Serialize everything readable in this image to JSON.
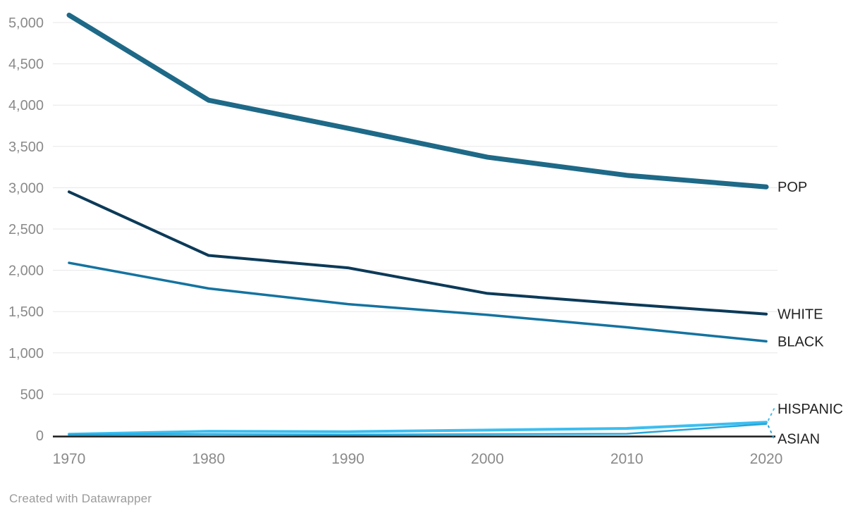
{
  "chart_data": {
    "type": "line",
    "title": "",
    "xlabel": "",
    "ylabel": "",
    "x": [
      1970,
      1980,
      1990,
      2000,
      2010,
      2020
    ],
    "x_tick_labels": [
      "1970",
      "1980",
      "1990",
      "2000",
      "2010",
      "2020"
    ],
    "y_ticks": [
      0,
      500,
      1000,
      1500,
      2000,
      2500,
      3000,
      3500,
      4000,
      4500,
      5000
    ],
    "y_tick_labels": [
      "0",
      "500",
      "1,000",
      "1,500",
      "2,000",
      "2,500",
      "3,000",
      "3,500",
      "4,000",
      "4,500",
      "5,000"
    ],
    "ylim": [
      0,
      5000
    ],
    "grid": true,
    "legend_position": "line-end-labels-right",
    "axis_label_color": "#8a8a8a",
    "series_label_color": "#222222",
    "gridline_color": "#e7e7e7",
    "baseline_color": "#1a1a1a",
    "series": [
      {
        "name": "POP",
        "color": "#1E6987",
        "stroke_width": 7,
        "label_dy": 0,
        "leader": false,
        "values": [
          5090,
          4060,
          3720,
          3370,
          3150,
          3010
        ]
      },
      {
        "name": "WHITE",
        "color": "#0C3A58",
        "stroke_width": 4,
        "label_dy": 0,
        "leader": false,
        "values": [
          2950,
          2180,
          2030,
          1720,
          1590,
          1470
        ]
      },
      {
        "name": "BLACK",
        "color": "#1473A0",
        "stroke_width": 3.5,
        "label_dy": 0,
        "leader": false,
        "values": [
          2090,
          1780,
          1590,
          1460,
          1310,
          1140
        ]
      },
      {
        "name": "HISPANIC",
        "color": "#3CBEF0",
        "stroke_width": 4,
        "label_dy": -19,
        "leader": true,
        "values": [
          15,
          50,
          45,
          65,
          85,
          160
        ]
      },
      {
        "name": "ASIAN",
        "color": "#28A5D7",
        "stroke_width": 2.5,
        "label_dy": 21,
        "leader": true,
        "values": [
          10,
          15,
          10,
          15,
          20,
          140
        ]
      }
    ]
  },
  "footer": {
    "credit": "Created with Datawrapper"
  }
}
